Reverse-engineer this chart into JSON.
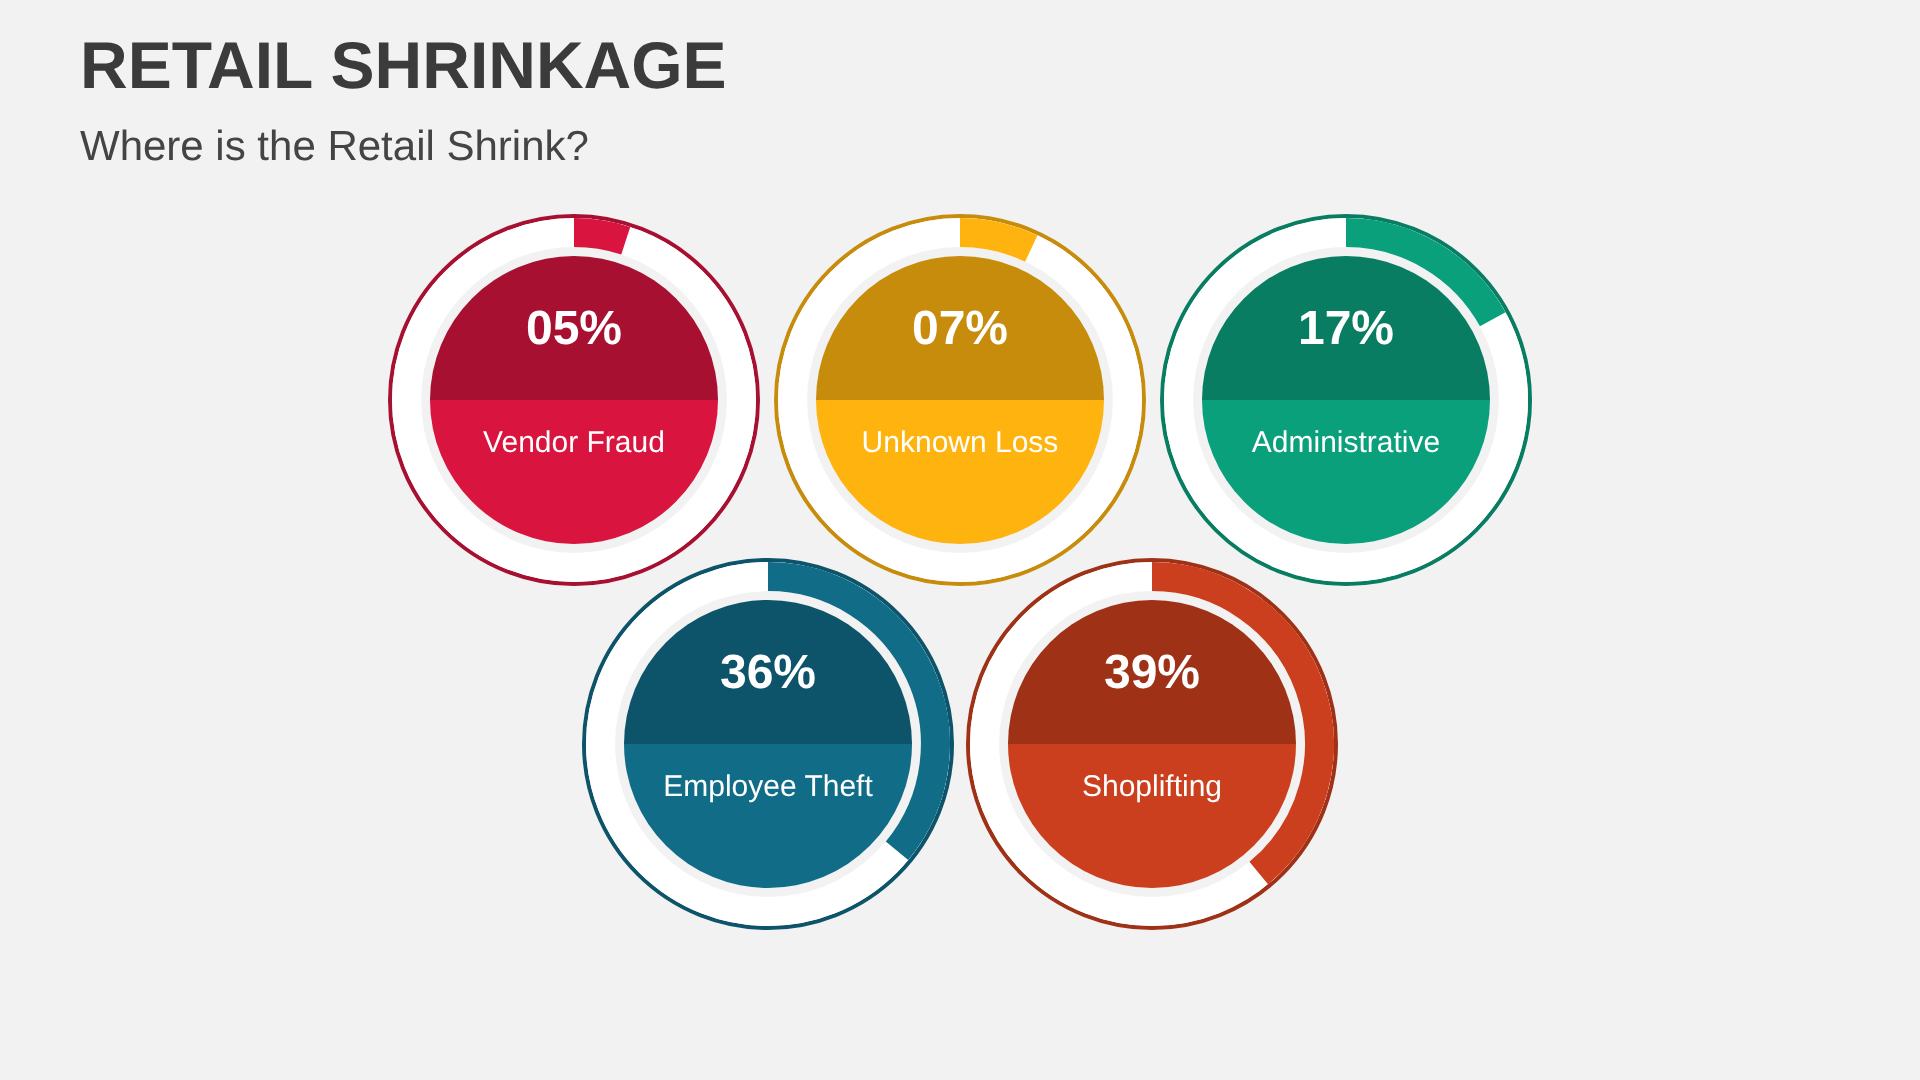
{
  "chart_data": {
    "type": "other",
    "title": "RETAIL SHRINKAGE",
    "subtitle": "Where is the Retail Shrink?",
    "categories": [
      "Vendor Fraud",
      "Unknown Loss",
      "Administrative",
      "Employee Theft",
      "Shoplifting"
    ],
    "values": [
      5,
      7,
      17,
      36,
      39
    ],
    "value_labels": [
      "05%",
      "07%",
      "17%",
      "36%",
      "39%"
    ],
    "colors": [
      "#d8143f",
      "#ffb30f",
      "#0aa07c",
      "#116c88",
      "#cc3f1e"
    ]
  }
}
